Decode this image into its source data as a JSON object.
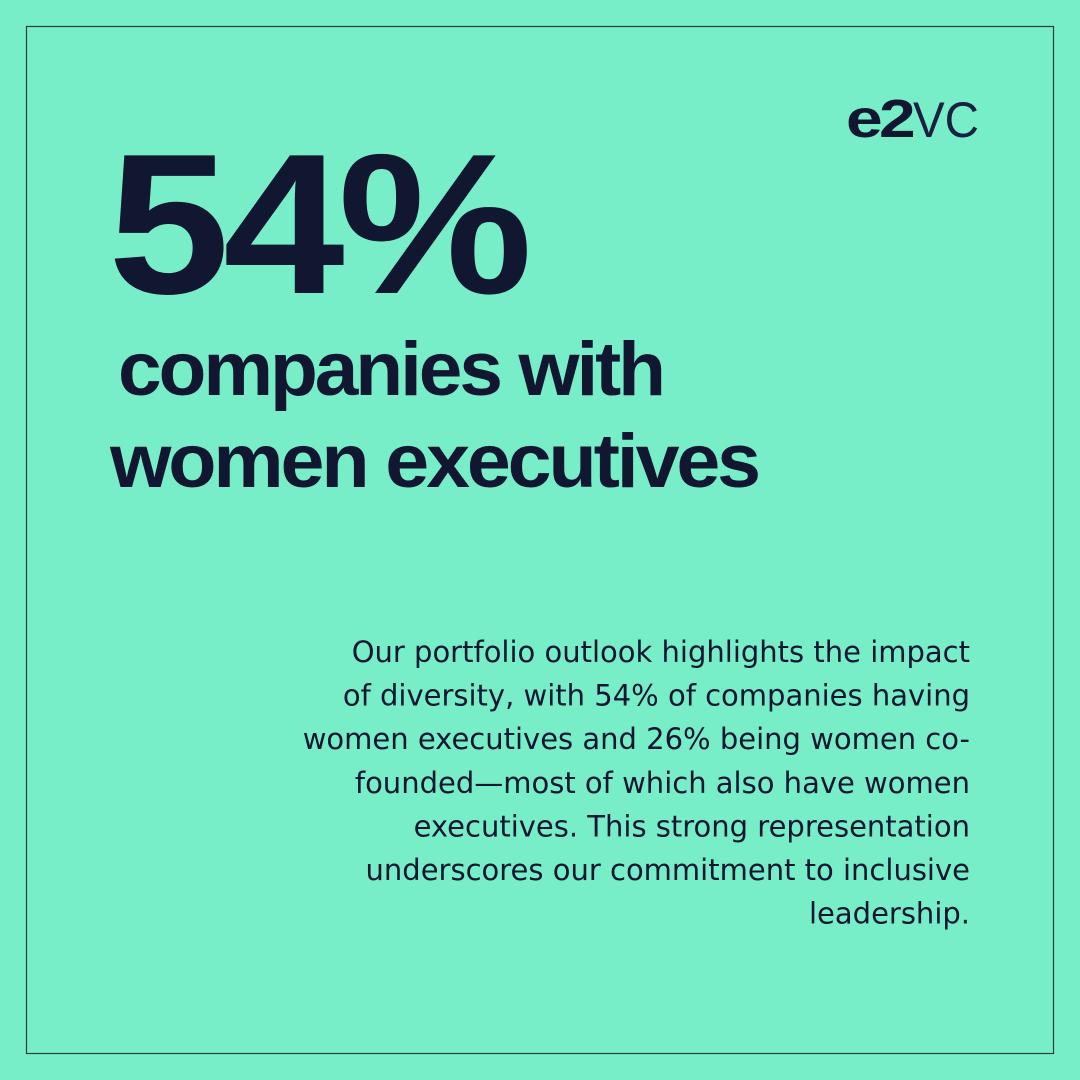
{
  "logo": {
    "bold": "e2",
    "light": "VC"
  },
  "headline": "54%",
  "subheadline": [
    "companies with",
    "women executives"
  ],
  "body": [
    "Our portfolio outlook highlights the impact",
    "of diversity, with 54% of companies having",
    "women executives and 26% being women co-",
    "founded—most of which also have women",
    "executives. This strong representation",
    "underscores our commitment to inclusive",
    "leadership."
  ]
}
